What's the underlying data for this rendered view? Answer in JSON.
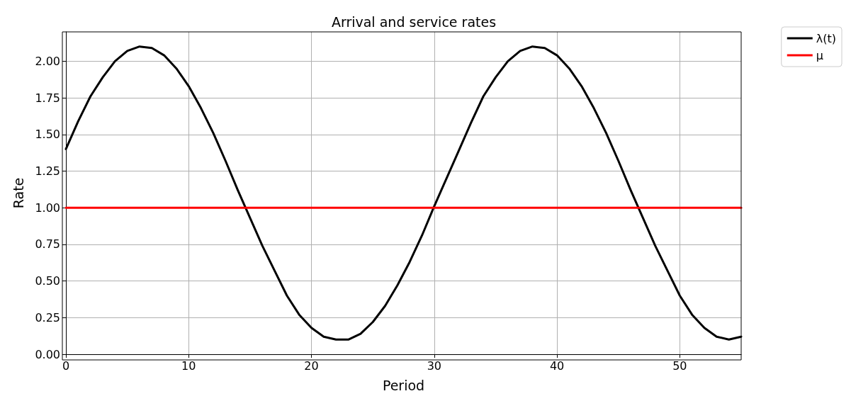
{
  "chart_data": {
    "type": "line",
    "title": "Arrival and service rates",
    "xlabel": "Period",
    "ylabel": "Rate",
    "xlim": [
      0,
      55
    ],
    "xticks": [
      0,
      10,
      20,
      30,
      40,
      50
    ],
    "ylim": [
      0,
      2.2
    ],
    "yticks": [
      {
        "value": 0,
        "label": "0.00"
      },
      {
        "value": 0.25,
        "label": "0.25"
      },
      {
        "value": 0.5,
        "label": "0.50"
      },
      {
        "value": 0.75,
        "label": "0.75"
      },
      {
        "value": 1,
        "label": "1.00"
      },
      {
        "value": 1.25,
        "label": "1.25"
      },
      {
        "value": 1.5,
        "label": "1.50"
      },
      {
        "value": 1.75,
        "label": "1.75"
      },
      {
        "value": 2,
        "label": "2.00"
      }
    ],
    "grid": true,
    "legend": "top right",
    "marker": "none",
    "line_style": "solid",
    "series": [
      {
        "name": "λ(t)",
        "color": "#000000",
        "x": [
          0,
          1,
          2,
          3,
          4,
          5,
          6,
          7,
          8,
          9,
          10,
          11,
          12,
          13,
          14,
          15,
          16,
          17,
          18,
          19,
          20,
          21,
          22,
          23,
          24,
          25,
          26,
          27,
          28,
          29,
          30,
          31,
          32,
          33,
          34,
          35,
          36,
          37,
          38,
          39,
          40,
          41,
          42,
          43,
          44,
          45,
          46,
          47,
          48,
          49,
          50,
          51,
          52,
          53,
          54,
          55
        ],
        "values": [
          1.4,
          1.59,
          1.76,
          1.89,
          2.0,
          2.07,
          2.1,
          2.09,
          2.04,
          1.95,
          1.83,
          1.68,
          1.51,
          1.32,
          1.12,
          0.93,
          0.74,
          0.57,
          0.4,
          0.27,
          0.18,
          0.12,
          0.1,
          0.1,
          0.14,
          0.22,
          0.33,
          0.47,
          0.63,
          0.81,
          1.01,
          1.2,
          1.39,
          1.58,
          1.76,
          1.89,
          2.0,
          2.07,
          2.1,
          2.09,
          2.04,
          1.95,
          1.83,
          1.68,
          1.51,
          1.32,
          1.12,
          0.93,
          0.74,
          0.57,
          0.4,
          0.27,
          0.18,
          0.12,
          0.1,
          0.12
        ]
      },
      {
        "name": "μ",
        "color": "#ff0000",
        "x": [
          0,
          55
        ],
        "values": [
          1,
          1
        ]
      }
    ]
  }
}
